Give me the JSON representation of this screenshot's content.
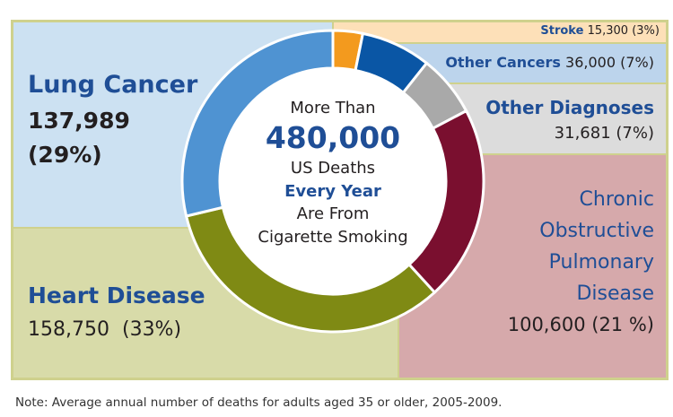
{
  "chart_data": {
    "type": "pie",
    "center": {
      "line1": "More Than",
      "total": "480,000",
      "line2": "US Deaths",
      "line3": "Every Year",
      "line4": "Are From",
      "line5": "Cigarette Smoking"
    },
    "slices": [
      {
        "name": "Stroke",
        "value": 15300,
        "value_label": "15,300",
        "percent_label": "(3%)",
        "color": "#f39a1e"
      },
      {
        "name": "Other Cancers",
        "value": 36000,
        "value_label": "36,000",
        "percent_label": "(7%)",
        "color": "#0a56a5"
      },
      {
        "name": "Other Diagnoses",
        "value": 31681,
        "value_label": "31,681",
        "percent_label": "(7%)",
        "color": "#a9a9a9"
      },
      {
        "name": "Chronic Obstructive Pulmonary Disease",
        "name_lines": [
          "Chronic",
          "Obstructive",
          "Pulmonary",
          "Disease"
        ],
        "value": 100600,
        "value_label": "100,600",
        "percent_label": "(21 %)",
        "color": "#7a0f2f"
      },
      {
        "name": "Heart Disease",
        "value": 158750,
        "value_label": "158,750",
        "percent_label": "(33%)",
        "color": "#7f8a14"
      },
      {
        "name": "Lung Cancer",
        "value": 137989,
        "value_label": "137,989",
        "percent_label": "(29%)",
        "color": "#4f93d2"
      }
    ],
    "panel_colors": {
      "stroke": "#fde0b8",
      "other_cancers": "#bcd4ec",
      "other_diagnoses": "#dcdcdc",
      "copd": "#d6a9ab",
      "heart": "#d8dba9",
      "lung": "#cce1f2",
      "border": "#cfd18d"
    }
  },
  "note": "Note: Average annual number of deaths for adults aged 35 or older, 2005-2009."
}
